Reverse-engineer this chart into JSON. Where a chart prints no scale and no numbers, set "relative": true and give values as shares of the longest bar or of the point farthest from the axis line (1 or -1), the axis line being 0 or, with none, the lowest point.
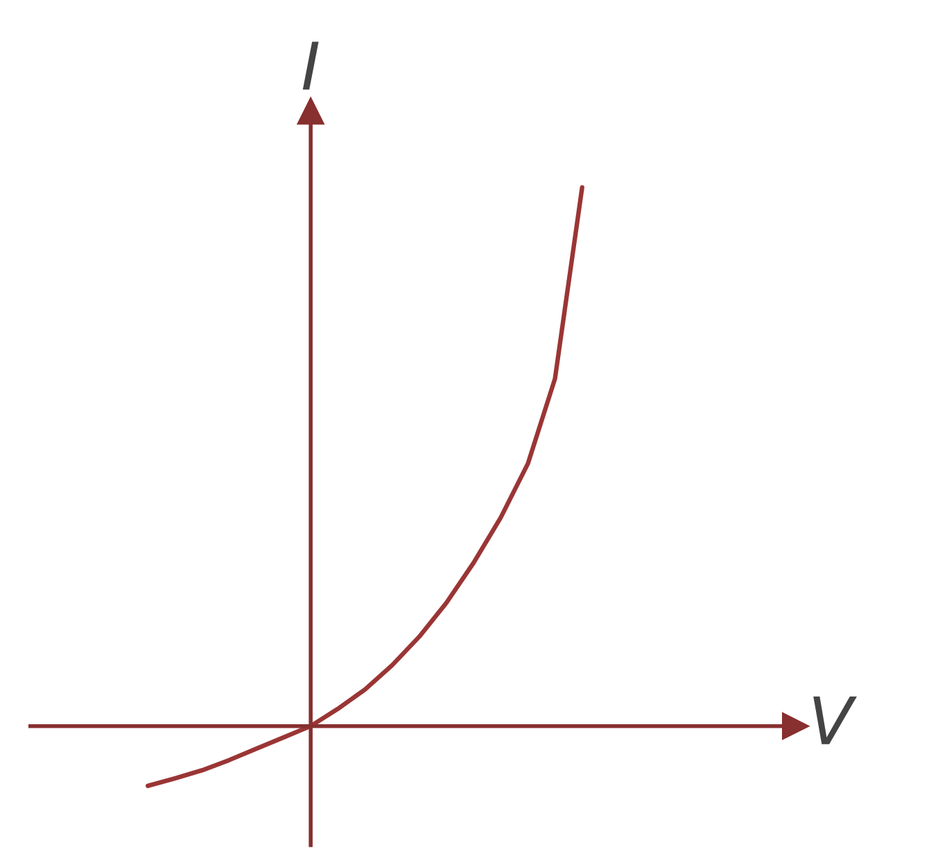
{
  "chart_data": {
    "type": "line",
    "relative": true,
    "xlabel": "V",
    "ylabel": "I",
    "categories": [
      null,
      null,
      null,
      null,
      null,
      null,
      null,
      null,
      null,
      null,
      null,
      null,
      null,
      null,
      null,
      null,
      null
    ],
    "series": [
      {
        "color": "#9b3535",
        "values": [
          -0.111,
          -0.097,
          -0.082,
          -0.063,
          -0.042,
          -0.021,
          0,
          0.032,
          0.068,
          0.113,
          0.166,
          0.229,
          0.303,
          0.387,
          0.487,
          0.645,
          1.0
        ]
      }
    ],
    "ref_lines": [
      {
        "axis": "y",
        "value": 0
      }
    ],
    "marker": "none",
    "line_style": "solid"
  }
}
